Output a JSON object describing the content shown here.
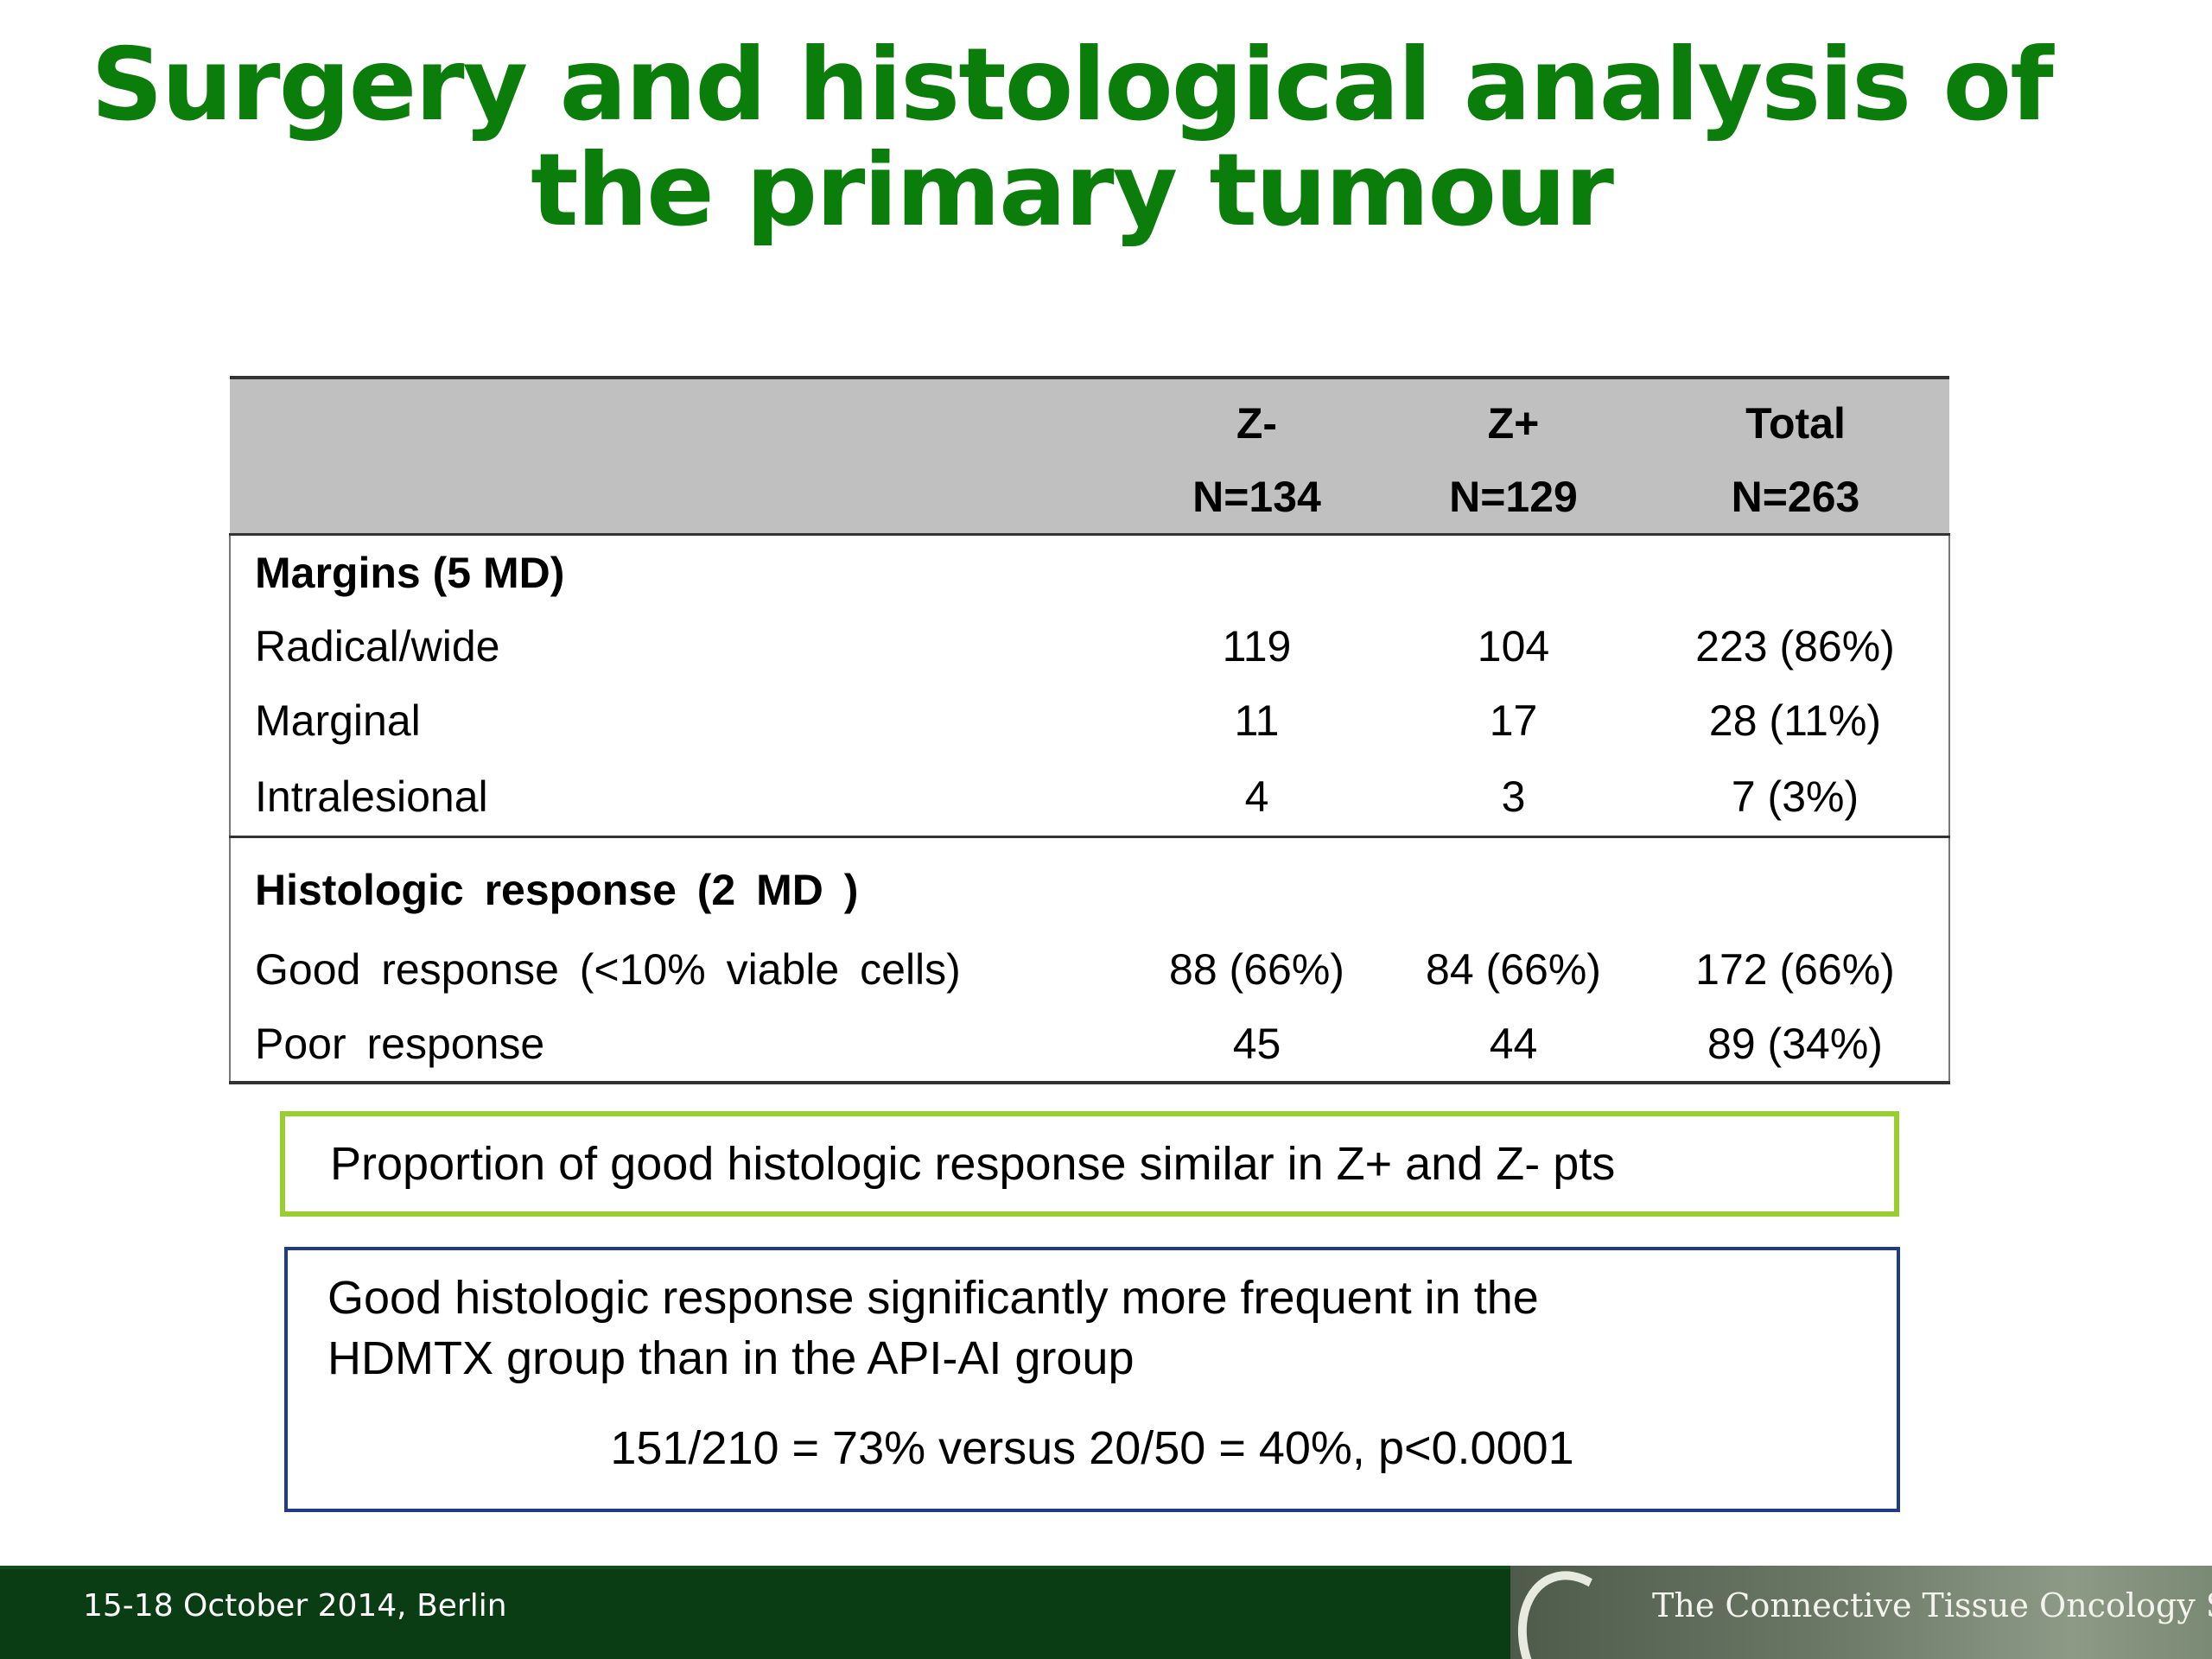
{
  "slide": {
    "title_line1": "Surgery and histological analysis of",
    "title_line2": "the primary tumour"
  },
  "table": {
    "headers": [
      {
        "group": "Z-",
        "n": "N=134"
      },
      {
        "group": "Z+",
        "n": "N=129"
      },
      {
        "group": "Total",
        "n": "N=263"
      }
    ],
    "sections": [
      {
        "label": "Margins (5 MD)",
        "rows": [
          {
            "label": "Radical/wide",
            "values": [
              "119",
              "104",
              "223 (86%)"
            ]
          },
          {
            "label": "Marginal",
            "values": [
              "11",
              "17",
              "28 (11%)"
            ]
          },
          {
            "label": "Intralesional",
            "values": [
              "4",
              "3",
              "7 (3%)"
            ]
          }
        ]
      },
      {
        "label": "Histologic response (2 MD )",
        "rows": [
          {
            "label": "Good response (<10% viable cells)",
            "values": [
              "88 (66%)",
              "84 (66%)",
              "172 (66%)"
            ]
          },
          {
            "label": "Poor response",
            "values": [
              "45",
              "44",
              "89 (34%)"
            ]
          }
        ]
      }
    ]
  },
  "callout1": {
    "text": "Proportion of good histologic response similar in Z+ and Z- pts"
  },
  "callout2": {
    "line1": "Good histologic response significantly more frequent in the",
    "line2": "HDMTX group than in the API-AI group",
    "stat": "151/210 = 73% versus 20/50 = 40%, p<0.0001"
  },
  "footer": {
    "date": "15-18 October 2014, Berlin",
    "society": "The Connective Tissue Oncology Society"
  },
  "colors": {
    "title": "#0a7d0a",
    "header_bg": "#c0c0c0",
    "callout1_border": "#9acd32",
    "callout2_border": "#1f3c8c",
    "footer_bg": "#0a3d14"
  }
}
